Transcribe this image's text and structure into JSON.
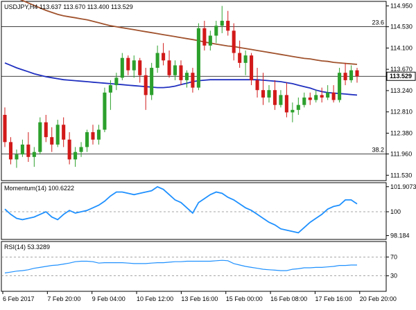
{
  "main": {
    "header": "USDJPY,H4  113.637 113.670 113.400 113.529",
    "yticks": [
      "114.950",
      "114.530",
      "114.100",
      "113.670",
      "113.240",
      "112.810",
      "112.380",
      "111.960",
      "111.530"
    ],
    "ytick_values": [
      114.95,
      114.53,
      114.1,
      113.67,
      113.24,
      112.81,
      112.38,
      111.96,
      111.53
    ],
    "current_price": "113.529",
    "current_price_value": 113.529,
    "fib_levels": [
      {
        "label": "23.6",
        "value": 114.53
      },
      {
        "label": "38.2",
        "value": 111.96
      }
    ]
  },
  "momentum": {
    "header": "Momentum(14) 100.6222",
    "yticks": [
      "101.9073",
      "100",
      "98.184"
    ],
    "ytick_values": [
      101.9073,
      100,
      98.184
    ]
  },
  "rsi": {
    "header": "RSI(14) 53.3289",
    "yticks": [
      "70",
      "30"
    ],
    "ytick_values": [
      70,
      30
    ]
  },
  "xticks": [
    "6 Feb 2017",
    "7 Feb 20:00",
    "9 Feb 04:00",
    "10 Feb 12:00",
    "13 Feb 16:00",
    "15 Feb 00:00",
    "16 Feb 08:00",
    "17 Feb 16:00",
    "20 Feb 20:00"
  ],
  "colors": {
    "bull": "#2ca02c",
    "bear": "#d21919",
    "ma_brown": "#a0522d",
    "ma_blue": "#1f2fbf",
    "indicator": "#1e90ff"
  },
  "chart_data": {
    "type": "candlestick",
    "symbol": "USDJPY",
    "timeframe": "H4",
    "ylim": [
      111.45,
      115.0
    ],
    "candles": [
      [
        112.75,
        112.9,
        112.1,
        112.2
      ],
      [
        112.2,
        112.3,
        111.75,
        111.85
      ],
      [
        111.85,
        112.05,
        111.68,
        111.95
      ],
      [
        111.95,
        112.25,
        111.9,
        112.15
      ],
      [
        112.15,
        112.4,
        111.8,
        111.9
      ],
      [
        111.9,
        112.1,
        111.7,
        112.0
      ],
      [
        112.0,
        112.7,
        111.95,
        112.6
      ],
      [
        112.6,
        112.75,
        112.2,
        112.3
      ],
      [
        112.3,
        112.5,
        112.0,
        112.15
      ],
      [
        112.15,
        112.65,
        112.1,
        112.55
      ],
      [
        112.55,
        112.7,
        112.1,
        112.25
      ],
      [
        112.25,
        112.4,
        111.75,
        111.85
      ],
      [
        111.85,
        112.1,
        111.7,
        112.0
      ],
      [
        112.0,
        112.2,
        111.9,
        112.1
      ],
      [
        112.1,
        112.45,
        112.0,
        112.4
      ],
      [
        112.4,
        112.55,
        112.15,
        112.25
      ],
      [
        112.25,
        112.55,
        112.15,
        112.45
      ],
      [
        112.45,
        113.3,
        112.4,
        113.2
      ],
      [
        113.2,
        113.45,
        112.85,
        113.35
      ],
      [
        113.35,
        113.6,
        113.25,
        113.5
      ],
      [
        113.5,
        114.0,
        113.45,
        113.9
      ],
      [
        113.9,
        113.95,
        113.55,
        113.65
      ],
      [
        113.65,
        113.95,
        113.5,
        113.85
      ],
      [
        113.85,
        113.9,
        113.4,
        113.55
      ],
      [
        113.55,
        113.7,
        112.85,
        113.15
      ],
      [
        113.15,
        113.8,
        113.05,
        113.7
      ],
      [
        113.7,
        114.15,
        113.6,
        114.0
      ],
      [
        114.0,
        114.2,
        113.75,
        113.85
      ],
      [
        113.85,
        114.05,
        113.5,
        113.55
      ],
      [
        113.55,
        113.85,
        113.45,
        113.75
      ],
      [
        113.75,
        113.85,
        113.35,
        113.45
      ],
      [
        113.45,
        113.65,
        113.3,
        113.6
      ],
      [
        113.6,
        113.7,
        113.2,
        113.3
      ],
      [
        113.3,
        114.6,
        113.25,
        114.5
      ],
      [
        114.5,
        114.65,
        114.05,
        114.15
      ],
      [
        114.15,
        114.45,
        114.05,
        114.35
      ],
      [
        114.35,
        114.65,
        114.2,
        114.55
      ],
      [
        114.55,
        114.95,
        114.4,
        114.65
      ],
      [
        114.65,
        114.85,
        114.35,
        114.45
      ],
      [
        114.45,
        114.6,
        113.85,
        114.0
      ],
      [
        114.0,
        114.25,
        113.7,
        113.8
      ],
      [
        113.8,
        114.05,
        113.55,
        113.95
      ],
      [
        113.95,
        114.0,
        113.35,
        113.45
      ],
      [
        113.45,
        113.7,
        113.1,
        113.25
      ],
      [
        113.25,
        113.6,
        112.95,
        113.1
      ],
      [
        113.1,
        113.35,
        113.0,
        113.25
      ],
      [
        113.25,
        113.45,
        112.85,
        112.95
      ],
      [
        112.95,
        113.25,
        112.9,
        113.15
      ],
      [
        113.15,
        113.4,
        112.7,
        112.8
      ],
      [
        112.8,
        113.0,
        112.6,
        112.85
      ],
      [
        112.85,
        113.1,
        112.75,
        112.95
      ],
      [
        112.95,
        113.2,
        112.9,
        113.1
      ],
      [
        113.1,
        113.2,
        112.95,
        113.05
      ],
      [
        113.05,
        113.25,
        113.0,
        113.15
      ],
      [
        113.15,
        113.3,
        113.0,
        113.1
      ],
      [
        113.1,
        113.35,
        113.05,
        113.2
      ],
      [
        113.2,
        113.35,
        113.0,
        113.05
      ],
      [
        113.05,
        113.7,
        113.0,
        113.6
      ],
      [
        113.6,
        113.8,
        113.35,
        113.45
      ],
      [
        113.45,
        113.75,
        113.4,
        113.65
      ],
      [
        113.65,
        113.7,
        113.4,
        113.53
      ]
    ],
    "ma_brown": [
      115.2,
      115.16,
      115.11,
      115.06,
      115.01,
      114.96,
      114.91,
      114.86,
      114.82,
      114.78,
      114.75,
      114.73,
      114.71,
      114.69,
      114.67,
      114.64,
      114.61,
      114.58,
      114.55,
      114.53,
      114.51,
      114.49,
      114.47,
      114.45,
      114.43,
      114.41,
      114.39,
      114.37,
      114.35,
      114.33,
      114.31,
      114.29,
      114.27,
      114.25,
      114.22,
      114.2,
      114.18,
      114.16,
      114.14,
      114.13,
      114.11,
      114.09,
      114.07,
      114.05,
      114.03,
      114.01,
      113.99,
      113.97,
      113.95,
      113.93,
      113.91,
      113.89,
      113.88,
      113.86,
      113.84,
      113.83,
      113.81,
      113.8,
      113.79,
      113.78,
      113.77
    ],
    "ma_blue": [
      113.8,
      113.75,
      113.7,
      113.66,
      113.62,
      113.58,
      113.55,
      113.52,
      113.5,
      113.48,
      113.46,
      113.45,
      113.44,
      113.43,
      113.42,
      113.41,
      113.4,
      113.39,
      113.38,
      113.37,
      113.36,
      113.35,
      113.34,
      113.33,
      113.32,
      113.31,
      113.3,
      113.3,
      113.31,
      113.33,
      113.36,
      113.39,
      113.42,
      113.44,
      113.45,
      113.46,
      113.46,
      113.46,
      113.46,
      113.46,
      113.46,
      113.46,
      113.46,
      113.46,
      113.45,
      113.44,
      113.43,
      113.42,
      113.4,
      113.38,
      113.35,
      113.32,
      113.29,
      113.25,
      113.22,
      113.2,
      113.19,
      113.18,
      113.17,
      113.16,
      113.15
    ],
    "momentum": {
      "ylim": [
        98.0,
        102.0
      ],
      "values": [
        100.2,
        99.8,
        99.5,
        99.4,
        99.5,
        99.6,
        99.8,
        100.0,
        99.6,
        99.4,
        99.8,
        100.1,
        99.9,
        100.0,
        100.1,
        100.3,
        100.5,
        100.8,
        101.2,
        101.5,
        101.5,
        101.4,
        101.3,
        101.4,
        101.5,
        101.6,
        101.9,
        101.7,
        101.3,
        100.9,
        100.7,
        100.3,
        99.9,
        100.7,
        101.0,
        101.3,
        101.5,
        101.4,
        101.1,
        100.9,
        100.6,
        100.3,
        100.1,
        99.8,
        99.5,
        99.2,
        99.0,
        98.7,
        98.6,
        98.5,
        98.4,
        98.8,
        99.2,
        99.5,
        99.8,
        100.2,
        100.4,
        100.5,
        100.9,
        100.9,
        100.6
      ]
    },
    "rsi": {
      "ylim": [
        0,
        100
      ],
      "values": [
        36,
        38,
        40,
        41,
        43,
        46,
        48,
        50,
        52,
        53,
        55,
        57,
        60,
        61,
        61,
        60,
        57,
        58,
        58,
        58,
        58,
        57,
        56,
        56,
        56,
        57,
        58,
        58,
        59,
        60,
        60,
        61,
        61,
        61,
        61,
        61,
        62,
        63,
        62,
        56,
        53,
        50,
        48,
        46,
        44,
        43,
        42,
        41,
        41,
        44,
        45,
        47,
        47,
        48,
        48,
        49,
        50,
        52,
        52,
        53,
        53
      ]
    }
  }
}
